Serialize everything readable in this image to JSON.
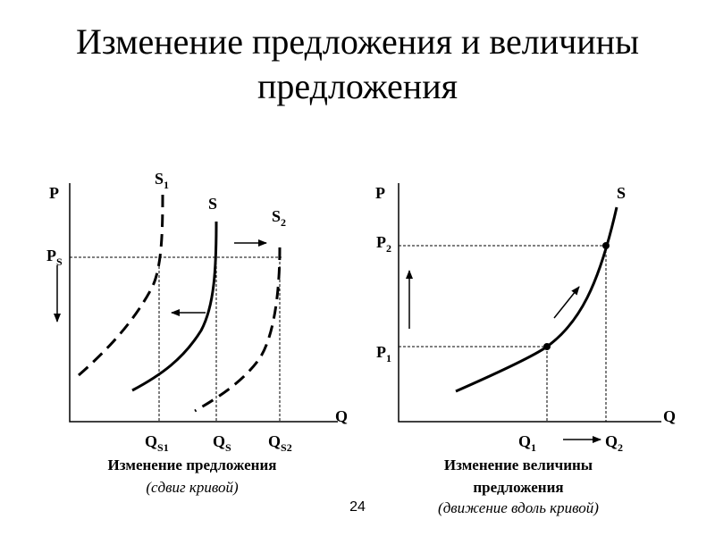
{
  "title": "Изменение предложения и величины предложения",
  "left_diagram": {
    "axis_labels": {
      "y": "P",
      "x": "Q"
    },
    "curves": [
      {
        "main": "S",
        "sub": "1"
      },
      {
        "main": "S"
      },
      {
        "main": "S",
        "sub": "2"
      }
    ],
    "price_label": {
      "main": "P",
      "sub": "S"
    },
    "quantity_labels": [
      {
        "main": "Q",
        "sub": "S1"
      },
      {
        "main": "Q",
        "sub": "S"
      },
      {
        "main": "Q",
        "sub": "S2"
      }
    ],
    "caption": "Изменение предложения",
    "subcaption": "(сдвиг кривой)"
  },
  "right_diagram": {
    "axis_labels": {
      "y": "P",
      "x": "Q"
    },
    "curve": {
      "main": "S"
    },
    "price_labels": [
      {
        "main": "P",
        "sub": "2"
      },
      {
        "main": "P",
        "sub": "1"
      }
    ],
    "quantity_labels": [
      {
        "main": "Q",
        "sub": "1"
      },
      {
        "main": "Q",
        "sub": "2"
      }
    ],
    "caption_lines": [
      "Изменение величины",
      "предложения"
    ],
    "subcaption": "(движение вдоль кривой)"
  },
  "page_number": "24"
}
